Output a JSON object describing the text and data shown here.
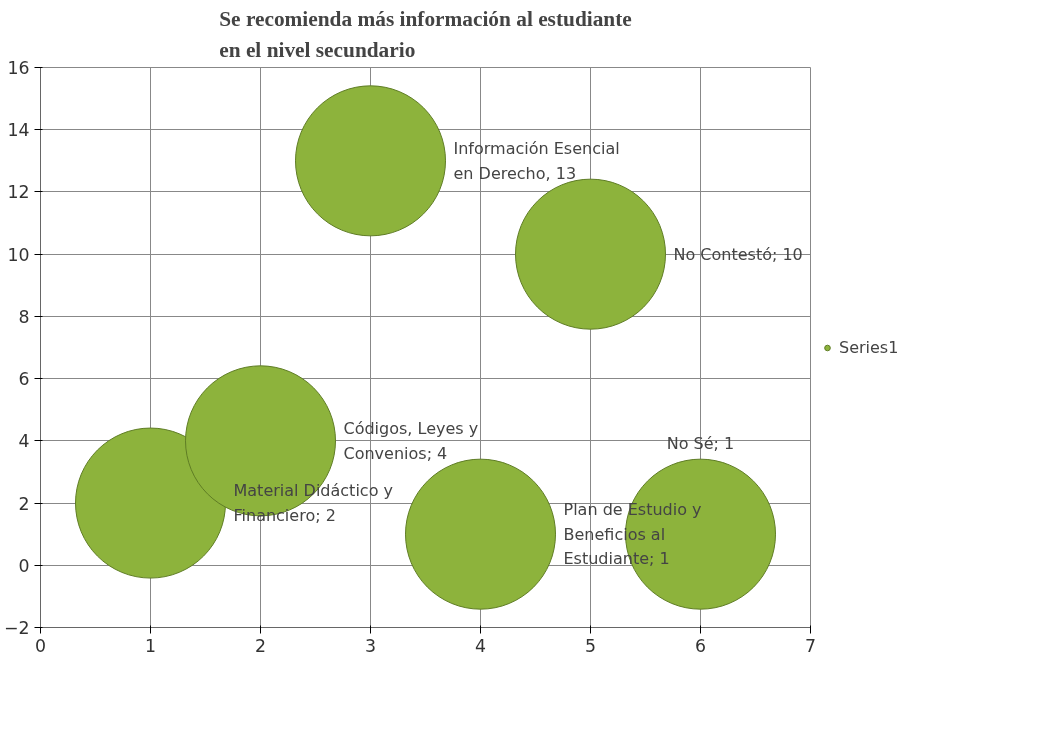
{
  "chart_data": {
    "type": "bubble",
    "title": "Se recomienda más información al estudiante\nen el nivel secundario",
    "x": [
      1,
      2,
      3,
      4,
      5,
      6
    ],
    "series": [
      {
        "name": "Series1",
        "color": "#8db33c",
        "values": [
          2,
          4,
          13,
          1,
          10,
          1
        ],
        "sizes": [
          1,
          1,
          1,
          1,
          1,
          1
        ],
        "value_labels": [
          "Material Didáctico y\nFinanciero; 2",
          "Códigos, Leyes y\nConvenios; 4",
          "Información Esencial\nen Derecho, 13",
          "Plan de Estudio y\nBeneficios al\nEstudiante; 1",
          "No Contestó; 10",
          "No Sé; 1"
        ]
      }
    ],
    "xlim": [
      0,
      7
    ],
    "xticks": [
      0,
      1,
      2,
      3,
      4,
      5,
      6,
      7
    ],
    "ylim": [
      -2,
      16
    ],
    "yticks": [
      -2,
      0,
      2,
      4,
      6,
      8,
      10,
      12,
      14,
      16
    ],
    "grid": true,
    "legend": "right"
  }
}
